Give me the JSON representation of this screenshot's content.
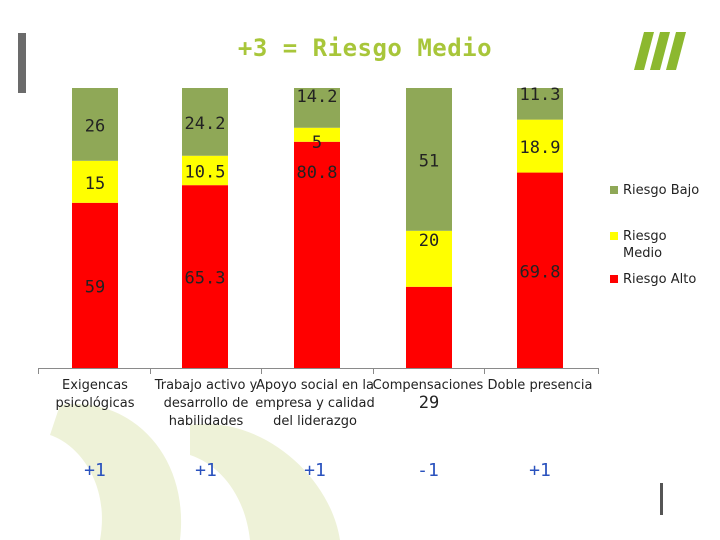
{
  "title": "+3 = Riesgo Medio",
  "colors": {
    "alto": "#ff0000",
    "medio": "#ffff00",
    "bajo": "#8fa857",
    "title": "#a8c63a",
    "score": "#2a52be"
  },
  "legend": {
    "bajo": "Riesgo Bajo",
    "medio": "Riesgo Medio",
    "alto": "Riesgo Alto"
  },
  "categories": [
    {
      "label": "Exigencas psicológicas",
      "score": "+1"
    },
    {
      "label": "Trabajo activo y desarrollo de habilidades",
      "score": "+1"
    },
    {
      "label": "Apoyo social en la empresa y calidad del liderazgo",
      "score": "+1"
    },
    {
      "label": "Compensaciones",
      "score": "-1"
    },
    {
      "label": "Doble presencia",
      "score": "+1"
    }
  ],
  "chart_data": {
    "type": "bar",
    "stacked": true,
    "title": "+3 = Riesgo Medio",
    "categories": [
      "Exigencas psicológicas",
      "Trabajo activo y desarrollo de habilidades",
      "Apoyo social en la empresa y calidad del liderazgo",
      "Compensaciones",
      "Doble presencia"
    ],
    "series": [
      {
        "name": "Riesgo Alto",
        "values": [
          59,
          65.3,
          80.8,
          29,
          69.8
        ],
        "labels": [
          "59",
          "65.3",
          "80.8",
          "29",
          "69.8"
        ]
      },
      {
        "name": "Riesgo Medio",
        "values": [
          15,
          10.5,
          5,
          20,
          18.9
        ],
        "labels": [
          "15",
          "10.5",
          "5",
          "20",
          "18.9"
        ]
      },
      {
        "name": "Riesgo Bajo",
        "values": [
          26,
          24.2,
          14.2,
          51,
          11.3
        ],
        "labels": [
          "26",
          "24.2",
          "14.2",
          "51",
          "11.3"
        ]
      }
    ],
    "ylim": [
      0,
      100
    ],
    "legend_position": "right",
    "grid": false
  }
}
